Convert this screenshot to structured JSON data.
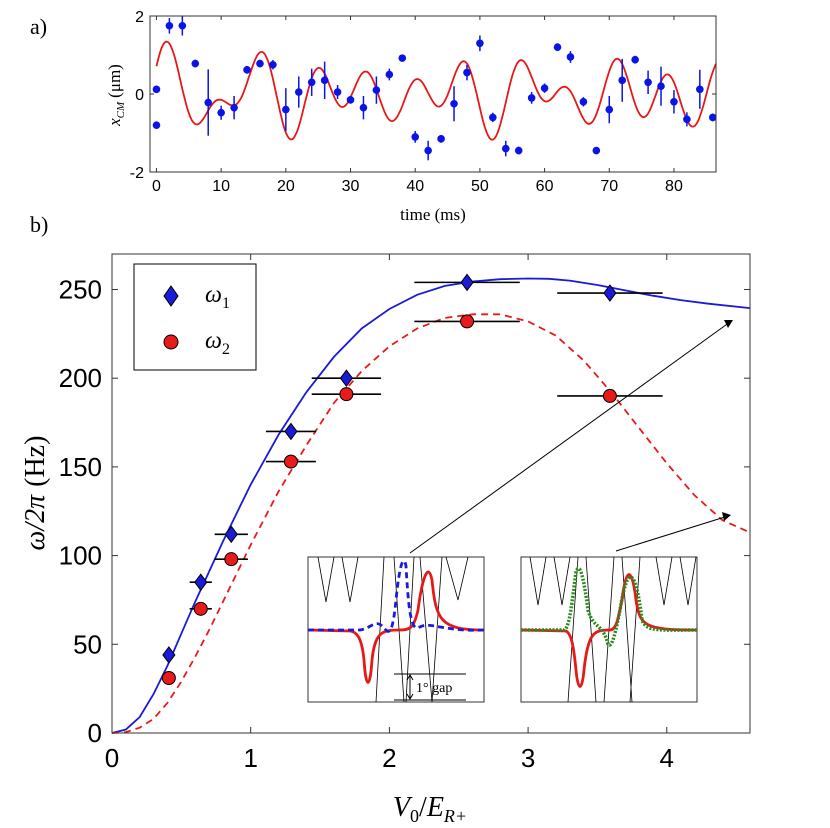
{
  "chart_data": [
    {
      "panel_label": "a)",
      "type": "scatter",
      "xlabel": "time (ms)",
      "ylabel_var": "x",
      "ylabel_sub": "CM",
      "ylabel_unit": "(μm)",
      "xlim": [
        -1,
        86.5
      ],
      "ylim": [
        -2,
        2
      ],
      "xticks": [
        "0",
        "10",
        "20",
        "30",
        "40",
        "50",
        "60",
        "70",
        "80"
      ],
      "xtick_values": [
        0,
        10,
        20,
        30,
        40,
        50,
        60,
        70,
        80
      ],
      "yticks": [
        "-2",
        "0",
        "2"
      ],
      "ytick_values": [
        -2,
        0,
        2
      ],
      "points": [
        {
          "x": 0,
          "y": 0.12,
          "err": 0.08
        },
        {
          "x": 0,
          "y": -0.8,
          "err": 0.06
        },
        {
          "x": 2,
          "y": 1.75,
          "err": 0.2
        },
        {
          "x": 4,
          "y": 1.75,
          "err": 0.25
        },
        {
          "x": 6,
          "y": 0.78,
          "err": 0.1
        },
        {
          "x": 8,
          "y": -0.22,
          "err": 0.85
        },
        {
          "x": 10,
          "y": -0.48,
          "err": 0.18
        },
        {
          "x": 12,
          "y": -0.35,
          "err": 0.3
        },
        {
          "x": 14,
          "y": 0.62,
          "err": 0.1
        },
        {
          "x": 16,
          "y": 0.78,
          "err": 0.1
        },
        {
          "x": 18,
          "y": 0.75,
          "err": 0.12
        },
        {
          "x": 20,
          "y": -0.4,
          "err": 0.55
        },
        {
          "x": 22,
          "y": 0.05,
          "err": 0.4
        },
        {
          "x": 24,
          "y": 0.3,
          "err": 0.35
        },
        {
          "x": 26,
          "y": 0.35,
          "err": 0.48
        },
        {
          "x": 28,
          "y": 0.05,
          "err": 0.18
        },
        {
          "x": 30,
          "y": -0.15,
          "err": 0.1
        },
        {
          "x": 32,
          "y": -0.35,
          "err": 0.3
        },
        {
          "x": 34,
          "y": 0.1,
          "err": 0.35
        },
        {
          "x": 36,
          "y": 0.5,
          "err": 0.15
        },
        {
          "x": 38,
          "y": 0.92,
          "err": 0.08
        },
        {
          "x": 40,
          "y": -1.1,
          "err": 0.15
        },
        {
          "x": 42,
          "y": -1.45,
          "err": 0.25
        },
        {
          "x": 44,
          "y": -1.15,
          "err": 0.1
        },
        {
          "x": 46,
          "y": -0.25,
          "err": 0.45
        },
        {
          "x": 48,
          "y": 0.55,
          "err": 0.2
        },
        {
          "x": 50,
          "y": 1.3,
          "err": 0.2
        },
        {
          "x": 52,
          "y": -0.6,
          "err": 0.12
        },
        {
          "x": 54,
          "y": -1.4,
          "err": 0.2
        },
        {
          "x": 56,
          "y": -1.45,
          "err": 0.1
        },
        {
          "x": 58,
          "y": -0.1,
          "err": 0.15
        },
        {
          "x": 60,
          "y": 0.15,
          "err": 0.12
        },
        {
          "x": 62,
          "y": 1.2,
          "err": 0.1
        },
        {
          "x": 64,
          "y": 0.95,
          "err": 0.15
        },
        {
          "x": 66,
          "y": -0.2,
          "err": 0.12
        },
        {
          "x": 68,
          "y": -1.45,
          "err": 0.08
        },
        {
          "x": 70,
          "y": -0.4,
          "err": 0.35
        },
        {
          "x": 72,
          "y": 0.35,
          "err": 0.55
        },
        {
          "x": 74,
          "y": 0.88,
          "err": 0.1
        },
        {
          "x": 76,
          "y": 0.3,
          "err": 0.3
        },
        {
          "x": 78,
          "y": 0.2,
          "err": 0.5
        },
        {
          "x": 80,
          "y": -0.2,
          "err": 0.3
        },
        {
          "x": 82,
          "y": -0.65,
          "err": 0.18
        },
        {
          "x": 84,
          "y": 0.12,
          "err": 0.5
        },
        {
          "x": 86,
          "y": -0.6,
          "err": 0.1
        }
      ],
      "fit": {
        "amp1": 1.2,
        "om1": 0.6283,
        "ph1": 0.5,
        "amp2": 0.55,
        "om2": 0.5236,
        "ph2": 1.0,
        "offset": 0.0
      },
      "colors": {
        "points": "#0a14e6",
        "fit": "#e61919"
      }
    },
    {
      "panel_label": "b)",
      "type": "scatter",
      "xlabel_var": "V",
      "xlabel_sub": "0",
      "xlabel_den": "E",
      "xlabel_densub": "R+",
      "ylabel_main": "ω/2π",
      "ylabel_unit": "(Hz)",
      "xlim": [
        0,
        4.6
      ],
      "ylim": [
        0,
        270
      ],
      "xticks": [
        "0",
        "1",
        "2",
        "3",
        "4"
      ],
      "xtick_values": [
        0,
        1,
        2,
        3,
        4
      ],
      "yticks": [
        "0",
        "50",
        "100",
        "150",
        "200",
        "250"
      ],
      "ytick_values": [
        0,
        50,
        100,
        150,
        200,
        250
      ],
      "legend": [
        {
          "label": "ω",
          "sub": "1",
          "marker": "diamond",
          "color": "#1a1ad9"
        },
        {
          "label": "ω",
          "sub": "2",
          "marker": "circle",
          "color": "#e81a1a"
        }
      ],
      "series": [
        {
          "name": "ω1",
          "marker": "diamond",
          "points": [
            {
              "x": 0.41,
              "y": 44,
              "xerr": 0.0
            },
            {
              "x": 0.64,
              "y": 85,
              "xerr": 0.08
            },
            {
              "x": 0.86,
              "y": 112,
              "xerr": 0.12
            },
            {
              "x": 1.29,
              "y": 170,
              "xerr": 0.18
            },
            {
              "x": 1.69,
              "y": 200,
              "xerr": 0.25
            },
            {
              "x": 2.56,
              "y": 254,
              "xerr": 0.38
            },
            {
              "x": 3.59,
              "y": 248,
              "xerr": 0.38
            }
          ]
        },
        {
          "name": "ω2",
          "marker": "circle",
          "points": [
            {
              "x": 0.41,
              "y": 31,
              "xerr": 0.0
            },
            {
              "x": 0.64,
              "y": 70,
              "xerr": 0.08
            },
            {
              "x": 0.86,
              "y": 98,
              "xerr": 0.12
            },
            {
              "x": 1.29,
              "y": 153,
              "xerr": 0.18
            },
            {
              "x": 1.69,
              "y": 191,
              "xerr": 0.25
            },
            {
              "x": 2.56,
              "y": 232,
              "xerr": 0.38
            },
            {
              "x": 3.59,
              "y": 190,
              "xerr": 0.38
            }
          ]
        }
      ],
      "theory": [
        {
          "name": "ω1 theory",
          "style": "solid",
          "color": "#1a1ad9",
          "x": [
            0,
            0.1,
            0.2,
            0.3,
            0.4,
            0.5,
            0.6,
            0.7,
            0.8,
            0.9,
            1.0,
            1.2,
            1.4,
            1.6,
            1.8,
            2.0,
            2.2,
            2.4,
            2.6,
            2.8,
            3.0,
            3.15,
            3.3,
            3.5,
            3.7,
            3.9,
            4.1,
            4.3,
            4.6
          ],
          "y": [
            0,
            2,
            9,
            22,
            38,
            56,
            74,
            91,
            108,
            124,
            140,
            168,
            192,
            212,
            228,
            239,
            247,
            252,
            254.5,
            255.8,
            256.2,
            256,
            255,
            252.5,
            249.5,
            246.5,
            244,
            242,
            239.5
          ]
        },
        {
          "name": "ω2 theory",
          "style": "dashed",
          "color": "#e81a1a",
          "x": [
            0,
            0.1,
            0.2,
            0.3,
            0.4,
            0.5,
            0.6,
            0.7,
            0.8,
            0.9,
            1.0,
            1.2,
            1.4,
            1.6,
            1.8,
            2.0,
            2.2,
            2.4,
            2.6,
            2.8,
            3.0,
            3.2,
            3.4,
            3.6,
            3.8,
            4.0,
            4.2,
            4.4,
            4.6
          ],
          "y": [
            0,
            0.5,
            3,
            8,
            17,
            29,
            43,
            58,
            74,
            90,
            106,
            136,
            162,
            186,
            204,
            218,
            228,
            234,
            236,
            236,
            232,
            224,
            210,
            192,
            172,
            152,
            134,
            120,
            113
          ]
        }
      ],
      "insets": {
        "left_label": "1° gap",
        "right_label": ""
      }
    }
  ]
}
